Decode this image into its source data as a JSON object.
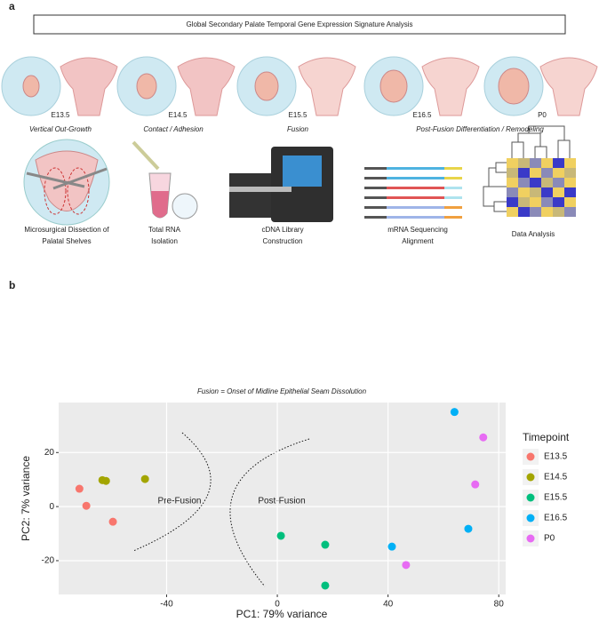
{
  "panel_a": {
    "label": "a",
    "title": "Global Secondary Palate Temporal Gene Expression Signature Analysis",
    "timepoints": [
      "E13.5",
      "E14.5",
      "E15.5",
      "E16.5",
      "P0"
    ],
    "phases": [
      "Vertical Out-Growth",
      "Contact / Adhesion",
      "Fusion",
      "Post-Fusion Differentiation / Remodeling"
    ],
    "steps": [
      {
        "lines": [
          "Microsurgical Dissection of",
          "Palatal Shelves"
        ]
      },
      {
        "lines": [
          "Total RNA",
          "Isolation"
        ]
      },
      {
        "lines": [
          "cDNA Library",
          "Construction"
        ]
      },
      {
        "lines": [
          "mRNA Sequencing",
          "Alignment"
        ]
      },
      {
        "lines": [
          "Data Analysis"
        ]
      }
    ]
  },
  "panel_b_label": "b",
  "chart_data": {
    "type": "scatter",
    "title": "Fusion = Onset of Midline Epithelial Seam Dissolution",
    "x_label": "PC1: 79% variance",
    "y_label": "PC2: 7% variance",
    "legend_title": "Timepoint",
    "annotations": [
      "Pre-Fusion",
      "Post-Fusion"
    ],
    "xlim": [
      -79,
      82.5
    ],
    "ylim": [
      -32.5,
      38.5
    ],
    "xticks": [
      -40,
      0,
      40,
      80
    ],
    "yticks": [
      -20,
      0,
      20
    ],
    "grid": true,
    "series": [
      {
        "name": "E13.5",
        "color": "#F8766D",
        "x": [
          -71.5,
          -69,
          -59.4
        ],
        "values": [
          6.6,
          0.3,
          -5.6
        ]
      },
      {
        "name": "E14.5",
        "color": "#A3A500",
        "x": [
          -63.2,
          -61.9,
          -47.8
        ],
        "values": [
          9.8,
          9.5,
          10.2
        ]
      },
      {
        "name": "E15.5",
        "color": "#00BF7D",
        "x": [
          1.3,
          17.3,
          17.3
        ],
        "values": [
          -10.8,
          -14.1,
          -29.2
        ]
      },
      {
        "name": "E16.5",
        "color": "#00B0F6",
        "x": [
          64,
          69,
          41.4
        ],
        "values": [
          35,
          -8.2,
          -14.8
        ]
      },
      {
        "name": "P0",
        "color": "#E76BF3",
        "x": [
          74.4,
          71.5,
          46.5
        ],
        "values": [
          25.6,
          8.2,
          -21.6
        ]
      }
    ]
  }
}
